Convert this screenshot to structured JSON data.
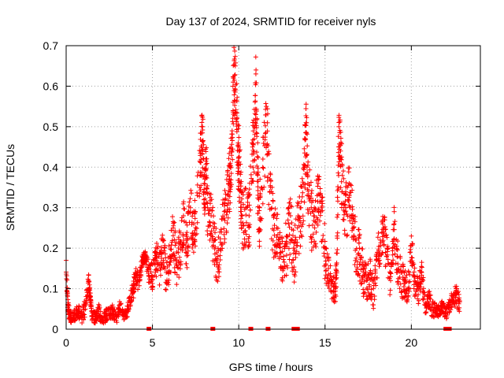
{
  "chart_data": {
    "type": "scatter",
    "title": "Day 137 of 2024, SRMTID for receiver nyls",
    "xlabel": "GPS time / hours",
    "ylabel": "SRMTID / TECUs",
    "xlim": [
      0,
      24
    ],
    "ylim": [
      0,
      0.7
    ],
    "xticks": [
      0,
      5,
      10,
      15,
      20
    ],
    "yticks": [
      0,
      0.1,
      0.2,
      0.3,
      0.4,
      0.5,
      0.6,
      0.7
    ],
    "xtick_labels": [
      "0",
      "5",
      "10",
      "15",
      "20"
    ],
    "ytick_labels": [
      "0",
      "0.1",
      "0.2",
      "0.3",
      "0.4",
      "0.5",
      "0.6",
      "0.7"
    ],
    "grid": true,
    "marker": "plus",
    "color": "#ff0000",
    "series": [
      {
        "name": "SRMTID",
        "description": "dense per-satellite SRMTID samples; values approximated from envelope",
        "x": [
          0.0,
          0.1,
          0.2,
          0.3,
          0.5,
          0.7,
          0.9,
          1.1,
          1.3,
          1.4,
          1.5,
          1.7,
          1.9,
          2.1,
          2.3,
          2.5,
          2.7,
          2.9,
          3.1,
          3.3,
          3.5,
          3.7,
          3.9,
          4.0,
          4.2,
          4.4,
          4.5,
          4.6,
          4.8,
          5.0,
          5.2,
          5.4,
          5.6,
          5.8,
          6.0,
          6.2,
          6.4,
          6.6,
          6.8,
          7.0,
          7.2,
          7.4,
          7.6,
          7.8,
          7.9,
          8.0,
          8.1,
          8.2,
          8.4,
          8.6,
          8.8,
          9.0,
          9.2,
          9.4,
          9.5,
          9.6,
          9.7,
          9.8,
          9.9,
          10.0,
          10.1,
          10.2,
          10.4,
          10.6,
          10.8,
          10.9,
          11.0,
          11.1,
          11.2,
          11.4,
          11.6,
          11.8,
          12.0,
          12.2,
          12.4,
          12.6,
          12.8,
          13.0,
          13.2,
          13.4,
          13.6,
          13.8,
          13.9,
          14.0,
          14.2,
          14.4,
          14.6,
          14.8,
          15.0,
          15.2,
          15.4,
          15.6,
          15.7,
          15.8,
          15.9,
          16.0,
          16.2,
          16.4,
          16.6,
          16.8,
          17.0,
          17.2,
          17.4,
          17.6,
          17.8,
          18.0,
          18.2,
          18.4,
          18.6,
          18.8,
          19.0,
          19.2,
          19.4,
          19.6,
          19.8,
          20.0,
          20.2,
          20.4,
          20.6,
          20.8,
          21.0,
          21.2,
          21.4,
          21.6,
          21.8,
          22.0,
          22.2,
          22.4,
          22.6,
          22.8
        ],
        "y": [
          0.17,
          0.06,
          0.04,
          0.03,
          0.04,
          0.05,
          0.03,
          0.06,
          0.12,
          0.08,
          0.04,
          0.03,
          0.05,
          0.02,
          0.04,
          0.04,
          0.05,
          0.03,
          0.06,
          0.04,
          0.04,
          0.08,
          0.1,
          0.14,
          0.12,
          0.17,
          0.18,
          0.18,
          0.15,
          0.13,
          0.19,
          0.16,
          0.22,
          0.14,
          0.18,
          0.25,
          0.17,
          0.21,
          0.28,
          0.22,
          0.3,
          0.26,
          0.33,
          0.44,
          0.5,
          0.36,
          0.42,
          0.3,
          0.28,
          0.22,
          0.18,
          0.24,
          0.32,
          0.36,
          0.4,
          0.44,
          0.62,
          0.65,
          0.52,
          0.45,
          0.36,
          0.28,
          0.3,
          0.28,
          0.45,
          0.5,
          0.64,
          0.38,
          0.3,
          0.42,
          0.55,
          0.34,
          0.28,
          0.25,
          0.21,
          0.18,
          0.23,
          0.28,
          0.2,
          0.25,
          0.3,
          0.4,
          0.51,
          0.38,
          0.3,
          0.25,
          0.36,
          0.3,
          0.2,
          0.15,
          0.12,
          0.1,
          0.23,
          0.5,
          0.44,
          0.38,
          0.3,
          0.36,
          0.28,
          0.22,
          0.2,
          0.15,
          0.12,
          0.14,
          0.1,
          0.18,
          0.22,
          0.25,
          0.2,
          0.12,
          0.26,
          0.18,
          0.14,
          0.12,
          0.1,
          0.23,
          0.12,
          0.1,
          0.14,
          0.06,
          0.08,
          0.06,
          0.05,
          0.05,
          0.06,
          0.04,
          0.06,
          0.08,
          0.09,
          0.07
        ],
        "spread": [
          0.03,
          0.02,
          0.02,
          0.02,
          0.02,
          0.02,
          0.02,
          0.03,
          0.03,
          0.02,
          0.02,
          0.02,
          0.02,
          0.02,
          0.02,
          0.02,
          0.02,
          0.02,
          0.02,
          0.02,
          0.02,
          0.03,
          0.03,
          0.03,
          0.03,
          0.02,
          0.02,
          0.02,
          0.04,
          0.05,
          0.06,
          0.06,
          0.06,
          0.06,
          0.07,
          0.07,
          0.07,
          0.07,
          0.07,
          0.08,
          0.08,
          0.08,
          0.09,
          0.1,
          0.1,
          0.1,
          0.1,
          0.1,
          0.1,
          0.08,
          0.08,
          0.09,
          0.1,
          0.1,
          0.1,
          0.1,
          0.12,
          0.12,
          0.12,
          0.12,
          0.11,
          0.1,
          0.1,
          0.1,
          0.12,
          0.12,
          0.13,
          0.12,
          0.1,
          0.12,
          0.12,
          0.1,
          0.1,
          0.09,
          0.08,
          0.08,
          0.09,
          0.1,
          0.09,
          0.1,
          0.1,
          0.11,
          0.11,
          0.1,
          0.1,
          0.1,
          0.1,
          0.1,
          0.08,
          0.06,
          0.05,
          0.05,
          0.09,
          0.1,
          0.1,
          0.1,
          0.1,
          0.1,
          0.09,
          0.08,
          0.08,
          0.07,
          0.06,
          0.06,
          0.05,
          0.06,
          0.07,
          0.07,
          0.07,
          0.05,
          0.07,
          0.07,
          0.06,
          0.05,
          0.05,
          0.06,
          0.05,
          0.04,
          0.05,
          0.03,
          0.03,
          0.03,
          0.02,
          0.02,
          0.02,
          0.02,
          0.02,
          0.03,
          0.03,
          0.03
        ]
      }
    ],
    "zero_markers_x": [
      4.8,
      8.5,
      10.7,
      11.7,
      13.2,
      13.4,
      22.0,
      22.2
    ]
  }
}
